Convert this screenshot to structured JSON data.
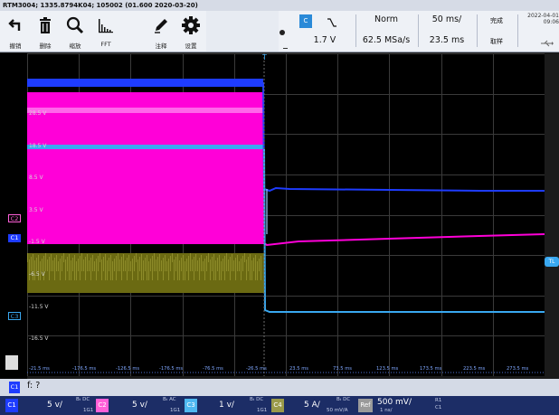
{
  "titlebar": {
    "text": "RTM3004; 1335.8794K04; 105002 (01.600 2020-03-20)"
  },
  "toolbar": {
    "buttons": [
      {
        "icon": "undo-icon",
        "label": "撤销"
      },
      {
        "icon": "trash-icon",
        "label": "删除"
      },
      {
        "icon": "zoom-icon",
        "label": "缩放"
      },
      {
        "icon": "fft-icon",
        "label": "FFT"
      },
      {
        "icon": "pen-icon",
        "label": "注释"
      },
      {
        "icon": "gear-icon",
        "label": "设置"
      }
    ],
    "channel_badge": "C",
    "trigger_level": "1.7 V",
    "trigger_mode": "Norm",
    "sample_rate": "62.5 MSa/s",
    "timebase": "50 ms/",
    "trigger_position": "23.5 ms",
    "acq_state": "完成",
    "acq_label": "取样",
    "date": "2022-04-01",
    "time": "09:06"
  },
  "scope": {
    "trigger_marker": "T",
    "level_labels": [
      "28.5 V",
      "18.5 V",
      "8.5 V",
      "3.5 V",
      "-1.5 V",
      "-6.5 V",
      "-11.5 V",
      "-16.5 V"
    ],
    "time_labels": [
      "-21.5 ms",
      "-176.5 ms",
      "-126.5 ms",
      "-176.5 ms",
      "-76.5 ms",
      "-26.5 ms",
      "23.5 ms",
      "73.5 ms",
      "123.5 ms",
      "173.5 ms",
      "223.5 ms",
      "273.5 ms"
    ],
    "right_marker": "TL"
  },
  "markers": {
    "c2": "C2",
    "c1": "C1",
    "c3": "C3"
  },
  "statusrow": {
    "badge": "C1",
    "text": "f: ?"
  },
  "channels": [
    {
      "badge": "C1",
      "scale": "5 v/",
      "coupling": "Bₜ DC",
      "sub": "1G1",
      "color": "#1e4fd6"
    },
    {
      "badge": "C2",
      "scale": "5 v/",
      "coupling": "Bₜ AC",
      "sub": "1G1",
      "color": "#ff5fd8"
    },
    {
      "badge": "C3",
      "scale": "1 v/",
      "coupling": "Bₜ DC",
      "sub": "1G1",
      "color": "#4fb8f0"
    },
    {
      "badge": "C4",
      "scale": "5 A/",
      "coupling": "Bₜ DC",
      "sub": "50 mV/A",
      "color": "#9a9a4a"
    }
  ],
  "ref": {
    "badge": "Ref",
    "scale": "500 mV/",
    "sub": "1 ns/",
    "r1": "R1",
    "c1": "C1"
  },
  "colors": {
    "ch1": "#1e3cff",
    "ch2": "#ff00d8",
    "ch3": "#39a8f0",
    "ch4": "#6b6a12",
    "grid": "#3a3a3a"
  }
}
